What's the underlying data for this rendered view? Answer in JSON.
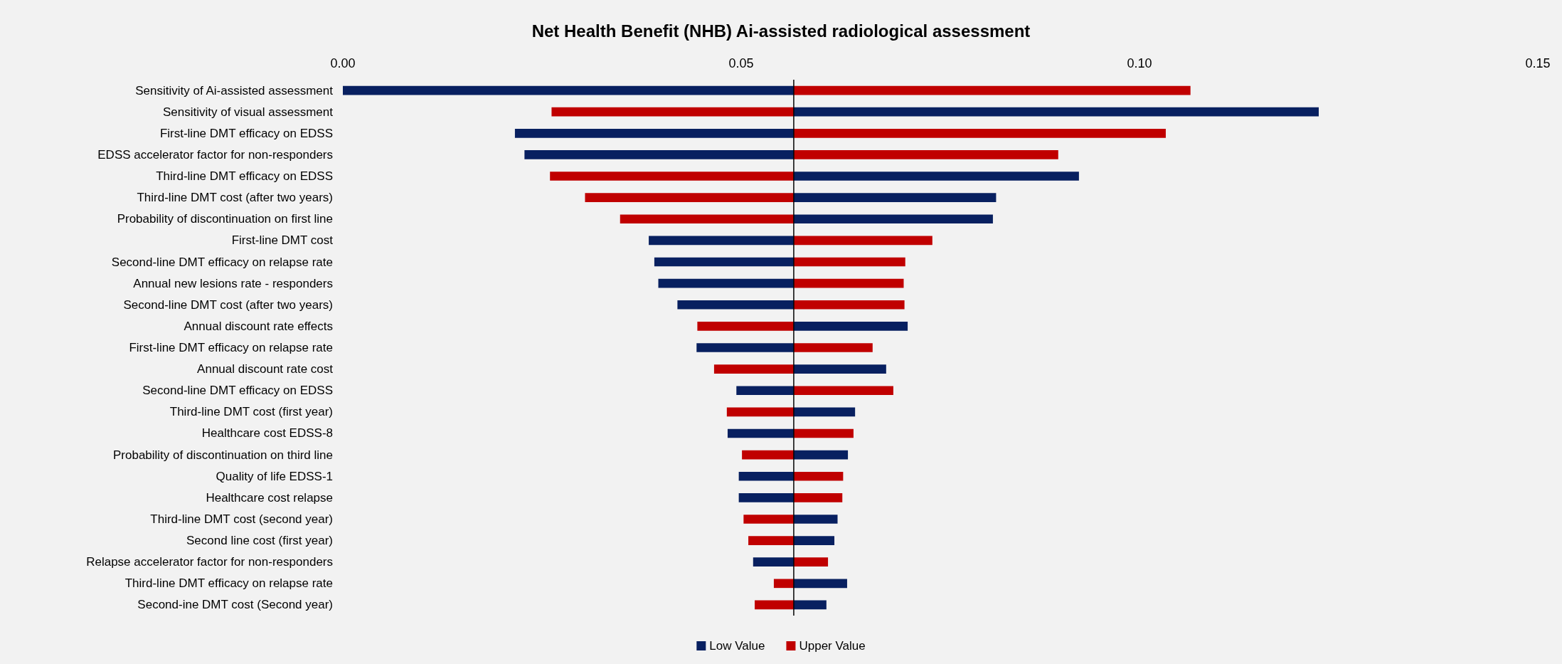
{
  "chart_data": {
    "type": "bar",
    "orientation": "horizontal",
    "title": "Net Health Benefit (NHB) Ai-assisted radiological assessment",
    "categories": [
      "Sensitivity of Ai-assisted assessment",
      "Sensitivity of visual assessment",
      "First-line DMT efficacy on EDSS",
      "EDSS accelerator factor for non-responders",
      "Third-line DMT efficacy on EDSS",
      "Third-line DMT cost (after two years)",
      "Probability of discontinuation on first line",
      "First-line DMT cost",
      "Second-line DMT efficacy on relapse rate",
      "Annual new lesions rate - responders",
      "Second-line DMT cost (after two years)",
      "Annual discount rate effects",
      "First-line DMT efficacy on relapse rate",
      "Annual discount rate cost",
      "Second-line DMT efficacy on EDSS",
      "Third-line DMT cost (first year)",
      "Healthcare cost EDSS-8",
      "Probability of discontinuation on third line",
      "Quality of life EDSS-1",
      "Healthcare cost relapse",
      "Third-line DMT cost (second year)",
      "Second line cost (first year)",
      "Relapse accelerator factor for non-responders",
      "Third-line DMT efficacy on relapse rate",
      "Second-ine DMT cost (Second year)"
    ],
    "series": [
      {
        "name": "Low Value",
        "color": "#082060",
        "base": [
          0.0566,
          0.0566,
          0.0566,
          0.0566,
          0.0566,
          0.0566,
          0.0566,
          0.0566,
          0.0566,
          0.0566,
          0.0566,
          0.0566,
          0.0566,
          0.0566,
          0.0566,
          0.0566,
          0.0566,
          0.0566,
          0.0566,
          0.0566,
          0.0566,
          0.0566,
          0.0566,
          0.0566,
          0.0566
        ],
        "values": [
          -0.0566,
          0.0659,
          -0.035,
          -0.0338,
          0.0358,
          0.0254,
          0.025,
          -0.0182,
          -0.0175,
          -0.017,
          -0.0146,
          0.0143,
          -0.0122,
          0.0116,
          -0.0072,
          0.0077,
          -0.0083,
          0.0068,
          -0.0069,
          -0.0069,
          0.0055,
          0.0051,
          -0.0051,
          0.0067,
          0.0041
        ]
      },
      {
        "name": "Upper Value",
        "color": "#c00000",
        "base": [
          0.0566,
          0.0566,
          0.0566,
          0.0566,
          0.0566,
          0.0566,
          0.0566,
          0.0566,
          0.0566,
          0.0566,
          0.0566,
          0.0566,
          0.0566,
          0.0566,
          0.0566,
          0.0566,
          0.0566,
          0.0566,
          0.0566,
          0.0566,
          0.0566,
          0.0566,
          0.0566,
          0.0566,
          0.0566
        ],
        "values": [
          0.0498,
          -0.0304,
          0.0467,
          0.0332,
          -0.0306,
          -0.0262,
          -0.0218,
          0.0174,
          0.014,
          0.0138,
          0.0139,
          -0.0121,
          0.0099,
          -0.01,
          0.0125,
          -0.0084,
          0.0075,
          -0.0065,
          0.0062,
          0.0061,
          -0.0063,
          -0.0057,
          0.0043,
          -0.0025,
          -0.0049
        ]
      }
    ],
    "xlim": [
      0,
      0.15
    ],
    "xticks": [
      {
        "value": 0,
        "label": "0.00"
      },
      {
        "value": 0.05,
        "label": "0.05"
      },
      {
        "value": 0.1,
        "label": "0.10"
      },
      {
        "value": 0.15,
        "label": "0.15"
      }
    ],
    "ref_lines": [
      {
        "axis": "x",
        "value": 0.0566,
        "color": "#000000"
      }
    ],
    "legend": "bottom"
  }
}
